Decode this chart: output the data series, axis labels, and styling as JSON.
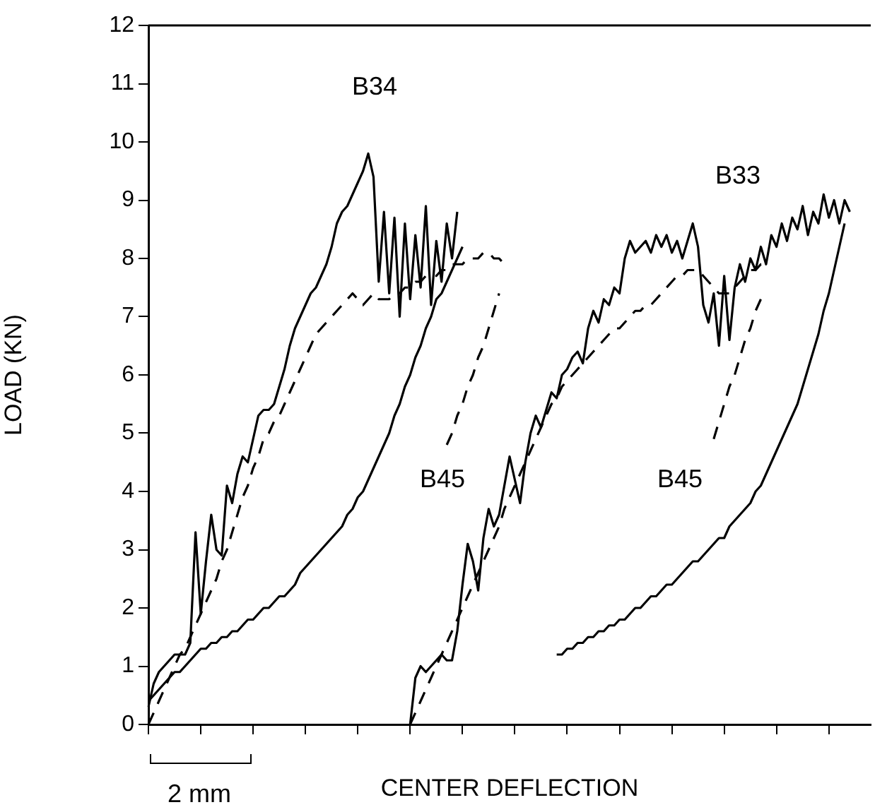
{
  "chart_data": {
    "type": "line",
    "xlabel": "CENTER DEFLECTION",
    "ylabel": "LOAD (KN)",
    "annotations": [
      "B34",
      "B33",
      "B45",
      "B45",
      "2 mm"
    ],
    "categories": [
      null,
      null,
      null,
      null,
      null,
      null,
      null,
      null,
      null,
      null,
      null,
      null,
      null,
      null,
      null,
      null,
      null,
      null,
      null,
      null,
      null,
      null,
      null,
      null,
      null,
      null,
      null,
      null,
      null,
      null,
      null,
      null,
      null,
      null,
      null,
      null,
      null,
      null,
      null,
      null,
      null,
      null,
      null,
      null,
      null,
      null,
      null,
      null,
      null,
      null,
      null,
      null,
      null,
      null,
      null,
      null,
      null,
      null,
      null,
      null,
      null,
      null,
      null,
      null,
      null,
      null,
      null,
      null,
      null,
      null,
      null,
      null,
      null,
      null,
      null,
      null,
      null,
      null,
      null,
      null,
      null,
      null,
      null,
      null,
      null,
      null,
      null,
      null,
      null,
      null,
      null,
      null,
      null,
      null,
      null,
      null,
      null,
      null,
      null,
      null,
      null,
      null,
      null,
      null,
      null,
      null,
      null,
      null,
      null,
      null,
      null,
      null,
      null,
      null,
      null,
      null,
      null,
      null,
      null,
      null,
      null,
      null,
      null,
      null,
      null,
      null,
      null,
      null,
      null,
      null,
      null,
      null,
      null,
      null,
      null,
      null,
      null,
      null,
      null
    ],
    "ylim": [
      0,
      12
    ],
    "yticks": [
      0,
      1,
      2,
      3,
      4,
      5,
      6,
      7,
      8,
      9,
      10,
      11,
      12
    ],
    "grid": false,
    "legend": false,
    "marker": "none",
    "tick_labels": "y",
    "series": [
      {
        "color": "#000000",
        "line_style": "solid",
        "values": [
          0.3,
          0.7,
          0.9,
          1.0,
          1.1,
          1.2,
          1.2,
          1.2,
          1.4,
          3.3,
          1.9,
          2.8,
          3.6,
          3.0,
          2.9,
          4.1,
          3.8,
          4.3,
          4.6,
          4.5,
          4.9,
          5.3,
          5.4,
          5.4,
          5.5,
          5.8,
          6.1,
          6.5,
          6.8,
          7.0,
          7.2,
          7.4,
          7.5,
          7.7,
          7.9,
          8.2,
          8.6,
          8.8,
          8.9,
          9.1,
          9.3,
          9.5,
          9.8,
          9.4,
          7.6,
          8.8,
          7.4,
          8.7,
          7.0,
          8.6,
          7.3,
          8.4,
          7.5,
          8.9,
          7.2,
          8.3,
          7.6,
          8.6,
          8.0,
          8.8,
          null,
          null,
          null,
          null,
          null,
          null,
          null,
          null,
          null,
          null,
          null,
          null,
          null,
          null,
          null,
          null,
          null,
          null,
          null,
          null,
          null,
          null,
          null,
          null,
          null,
          null,
          null,
          null,
          null,
          null,
          null,
          null,
          null,
          null,
          null,
          null,
          null,
          null,
          null,
          null,
          null,
          null,
          null,
          null,
          null,
          null,
          null,
          null,
          null,
          null,
          null,
          null,
          null,
          null,
          null,
          null,
          null,
          null,
          null,
          null,
          null,
          null,
          null,
          null,
          null,
          null,
          null,
          null,
          null,
          null,
          null,
          null,
          null,
          null,
          null,
          null,
          null,
          null,
          null
        ]
      },
      {
        "color": "#000000",
        "line_style": "dashed",
        "values": [
          0.0,
          0.2,
          0.4,
          0.6,
          0.8,
          1.0,
          1.2,
          1.3,
          1.5,
          1.7,
          1.9,
          2.1,
          2.3,
          2.5,
          2.8,
          3.0,
          3.3,
          3.6,
          3.9,
          4.1,
          4.4,
          4.6,
          4.9,
          5.0,
          5.2,
          5.3,
          5.5,
          5.7,
          5.9,
          6.1,
          6.3,
          6.5,
          6.7,
          6.8,
          6.9,
          7.0,
          7.1,
          7.2,
          7.3,
          7.4,
          7.3,
          7.2,
          7.3,
          7.4,
          7.3,
          7.3,
          7.3,
          7.4,
          7.4,
          7.5,
          7.5,
          7.6,
          7.6,
          7.7,
          7.7,
          7.7,
          7.8,
          7.8,
          7.9,
          7.9,
          7.9,
          8.0,
          8.0,
          8.0,
          8.1,
          8.1,
          8.0,
          8.0,
          7.9,
          null,
          null,
          null,
          null,
          null,
          null,
          null,
          null,
          null,
          null,
          null,
          null,
          null,
          null,
          null,
          null,
          null,
          null,
          null,
          null,
          null,
          null,
          null,
          null,
          null,
          null,
          null,
          null,
          null,
          null,
          null,
          null,
          null,
          null,
          null,
          null,
          null,
          null,
          null,
          null,
          null,
          null,
          null,
          null,
          null,
          null,
          null,
          null,
          null,
          null,
          null,
          null,
          null,
          null,
          null,
          null,
          null,
          null,
          null,
          null,
          null,
          null,
          null,
          null,
          null,
          null,
          null,
          null,
          null,
          null
        ]
      },
      {
        "color": "#000000",
        "line_style": "solid",
        "values": [
          0.4,
          0.5,
          0.6,
          0.7,
          0.8,
          0.9,
          0.9,
          1.0,
          1.1,
          1.2,
          1.3,
          1.3,
          1.4,
          1.4,
          1.5,
          1.5,
          1.6,
          1.6,
          1.7,
          1.8,
          1.8,
          1.9,
          2.0,
          2.0,
          2.1,
          2.2,
          2.2,
          2.3,
          2.4,
          2.6,
          2.7,
          2.8,
          2.9,
          3.0,
          3.1,
          3.2,
          3.3,
          3.4,
          3.6,
          3.7,
          3.9,
          4.0,
          4.2,
          4.4,
          4.6,
          4.8,
          5.0,
          5.3,
          5.5,
          5.8,
          6.0,
          6.3,
          6.5,
          6.8,
          7.0,
          7.3,
          7.4,
          7.6,
          7.8,
          8.0,
          8.2,
          null,
          null,
          null,
          null,
          null,
          null,
          null,
          null,
          null,
          null,
          null,
          null,
          null,
          null,
          null,
          null,
          null,
          null,
          null,
          null,
          null,
          null,
          null,
          null,
          null,
          null,
          null,
          null,
          null,
          null,
          null,
          null,
          null,
          null,
          null,
          null,
          null,
          null,
          null,
          null,
          null,
          null,
          null,
          null,
          null,
          null,
          null,
          null,
          null,
          null,
          null,
          null,
          null,
          null,
          null,
          null,
          null,
          null,
          null,
          null,
          null,
          null,
          null,
          null,
          null,
          null,
          null,
          null,
          null,
          null,
          null,
          null,
          null,
          null,
          null,
          null,
          null,
          null
        ]
      },
      {
        "color": "#000000",
        "line_style": "dashed",
        "values": [
          null,
          null,
          null,
          null,
          null,
          null,
          null,
          null,
          null,
          null,
          null,
          null,
          null,
          null,
          null,
          null,
          null,
          null,
          null,
          null,
          null,
          null,
          null,
          null,
          null,
          null,
          null,
          null,
          null,
          null,
          null,
          null,
          null,
          null,
          null,
          null,
          null,
          null,
          null,
          null,
          null,
          null,
          null,
          null,
          null,
          null,
          null,
          null,
          null,
          null,
          null,
          null,
          null,
          null,
          null,
          null,
          null,
          4.8,
          5.0,
          5.3,
          5.5,
          5.8,
          6.0,
          6.3,
          6.5,
          6.8,
          7.1,
          7.4,
          null,
          null,
          null,
          null,
          null,
          null,
          null,
          null,
          null,
          null,
          null,
          null,
          null,
          null,
          null,
          null,
          null,
          null,
          null,
          null,
          null,
          null,
          null,
          null,
          null,
          null,
          null,
          null,
          null,
          null,
          null,
          null,
          null,
          null,
          null,
          null,
          null,
          null,
          null,
          null,
          null,
          null,
          null,
          null,
          null,
          null,
          null,
          null,
          null,
          null,
          null,
          null,
          null,
          null,
          null,
          null,
          null,
          null,
          null,
          null,
          null,
          null,
          null,
          null,
          null,
          null,
          null,
          null,
          null,
          null,
          null
        ]
      },
      {
        "color": "#000000",
        "line_style": "solid",
        "values": [
          null,
          null,
          null,
          null,
          null,
          null,
          null,
          null,
          null,
          null,
          null,
          null,
          null,
          null,
          null,
          null,
          null,
          null,
          null,
          null,
          null,
          null,
          null,
          null,
          null,
          null,
          null,
          null,
          null,
          null,
          null,
          null,
          null,
          null,
          null,
          null,
          null,
          null,
          null,
          null,
          null,
          null,
          null,
          null,
          null,
          null,
          null,
          null,
          null,
          null,
          0.0,
          0.8,
          1.0,
          0.9,
          1.0,
          1.1,
          1.2,
          1.1,
          1.1,
          1.6,
          2.4,
          3.1,
          2.8,
          2.3,
          3.2,
          3.7,
          3.4,
          3.6,
          4.1,
          4.6,
          4.2,
          3.8,
          4.5,
          5.0,
          5.3,
          5.1,
          5.4,
          5.7,
          5.6,
          6.0,
          6.1,
          6.3,
          6.4,
          6.2,
          6.8,
          7.1,
          6.9,
          7.3,
          7.2,
          7.5,
          7.4,
          8.0,
          8.3,
          8.1,
          8.2,
          8.3,
          8.1,
          8.4,
          8.2,
          8.4,
          8.1,
          8.3,
          8.0,
          8.3,
          8.6,
          8.2,
          7.2,
          6.9,
          7.4,
          6.5,
          7.7,
          6.6,
          7.5,
          7.9,
          7.6,
          8.0,
          7.8,
          8.2,
          7.9,
          8.4,
          8.2,
          8.6,
          8.3,
          8.7,
          8.5,
          8.9,
          8.4,
          8.8,
          8.6,
          9.1,
          8.7,
          9.0,
          8.6,
          9.0,
          8.8,
          null,
          null,
          null,
          null
        ]
      },
      {
        "color": "#000000",
        "line_style": "dashed",
        "values": [
          null,
          null,
          null,
          null,
          null,
          null,
          null,
          null,
          null,
          null,
          null,
          null,
          null,
          null,
          null,
          null,
          null,
          null,
          null,
          null,
          null,
          null,
          null,
          null,
          null,
          null,
          null,
          null,
          null,
          null,
          null,
          null,
          null,
          null,
          null,
          null,
          null,
          null,
          null,
          null,
          null,
          null,
          null,
          null,
          null,
          null,
          null,
          null,
          null,
          null,
          0.0,
          0.2,
          0.4,
          0.6,
          0.8,
          1.0,
          1.2,
          1.4,
          1.6,
          1.8,
          2.0,
          2.2,
          2.4,
          2.6,
          2.8,
          3.0,
          3.2,
          3.4,
          3.7,
          3.9,
          4.1,
          4.3,
          4.5,
          4.7,
          4.9,
          5.1,
          5.3,
          5.5,
          5.6,
          5.8,
          5.9,
          6.0,
          6.1,
          6.2,
          6.3,
          6.4,
          6.5,
          6.6,
          6.7,
          6.8,
          6.8,
          6.9,
          7.0,
          7.1,
          7.1,
          7.2,
          7.2,
          7.3,
          7.4,
          7.5,
          7.6,
          7.7,
          7.7,
          7.8,
          7.8,
          7.8,
          7.7,
          7.6,
          7.5,
          7.4,
          7.4,
          7.4,
          7.5,
          7.6,
          7.7,
          7.8,
          7.8,
          7.9,
          7.9,
          null,
          null,
          null,
          null,
          null,
          null,
          null,
          null,
          null,
          null,
          null,
          null,
          null,
          null,
          null,
          null,
          null,
          null,
          null,
          null
        ]
      },
      {
        "color": "#000000",
        "line_style": "dashed",
        "values": [
          null,
          null,
          null,
          null,
          null,
          null,
          null,
          null,
          null,
          null,
          null,
          null,
          null,
          null,
          null,
          null,
          null,
          null,
          null,
          null,
          null,
          null,
          null,
          null,
          null,
          null,
          null,
          null,
          null,
          null,
          null,
          null,
          null,
          null,
          null,
          null,
          null,
          null,
          null,
          null,
          null,
          null,
          null,
          null,
          null,
          null,
          null,
          null,
          null,
          null,
          null,
          null,
          null,
          null,
          null,
          null,
          null,
          null,
          null,
          null,
          null,
          null,
          null,
          null,
          null,
          null,
          null,
          null,
          null,
          null,
          null,
          null,
          null,
          null,
          null,
          null,
          null,
          null,
          null,
          null,
          null,
          null,
          null,
          null,
          null,
          null,
          null,
          null,
          null,
          null,
          null,
          null,
          null,
          null,
          null,
          null,
          null,
          null,
          null,
          null,
          null,
          null,
          null,
          null,
          null,
          null,
          null,
          null,
          4.9,
          5.2,
          5.5,
          5.8,
          6.0,
          6.3,
          6.6,
          6.8,
          7.1,
          7.3,
          null,
          null,
          null,
          null,
          null,
          null,
          null,
          null,
          null,
          null,
          null,
          null,
          null,
          null,
          null,
          null,
          null,
          null,
          null,
          null,
          null
        ]
      },
      {
        "color": "#000000",
        "line_style": "solid",
        "values": [
          null,
          null,
          null,
          null,
          null,
          null,
          null,
          null,
          null,
          null,
          null,
          null,
          null,
          null,
          null,
          null,
          null,
          null,
          null,
          null,
          null,
          null,
          null,
          null,
          null,
          null,
          null,
          null,
          null,
          null,
          null,
          null,
          null,
          null,
          null,
          null,
          null,
          null,
          null,
          null,
          null,
          null,
          null,
          null,
          null,
          null,
          null,
          null,
          null,
          null,
          null,
          null,
          null,
          null,
          null,
          null,
          null,
          null,
          null,
          null,
          null,
          null,
          null,
          null,
          null,
          null,
          null,
          null,
          null,
          null,
          null,
          null,
          null,
          null,
          null,
          null,
          null,
          null,
          1.2,
          1.2,
          1.3,
          1.3,
          1.4,
          1.4,
          1.5,
          1.5,
          1.6,
          1.6,
          1.7,
          1.7,
          1.8,
          1.8,
          1.9,
          2.0,
          2.0,
          2.1,
          2.2,
          2.2,
          2.3,
          2.4,
          2.4,
          2.5,
          2.6,
          2.7,
          2.8,
          2.8,
          2.9,
          3.0,
          3.1,
          3.2,
          3.2,
          3.4,
          3.5,
          3.6,
          3.7,
          3.8,
          4.0,
          4.1,
          4.3,
          4.5,
          4.7,
          4.9,
          5.1,
          5.3,
          5.5,
          5.8,
          6.1,
          6.4,
          6.7,
          7.1,
          7.4,
          7.8,
          8.2,
          8.6,
          null,
          null,
          null,
          null,
          null
        ]
      }
    ]
  }
}
